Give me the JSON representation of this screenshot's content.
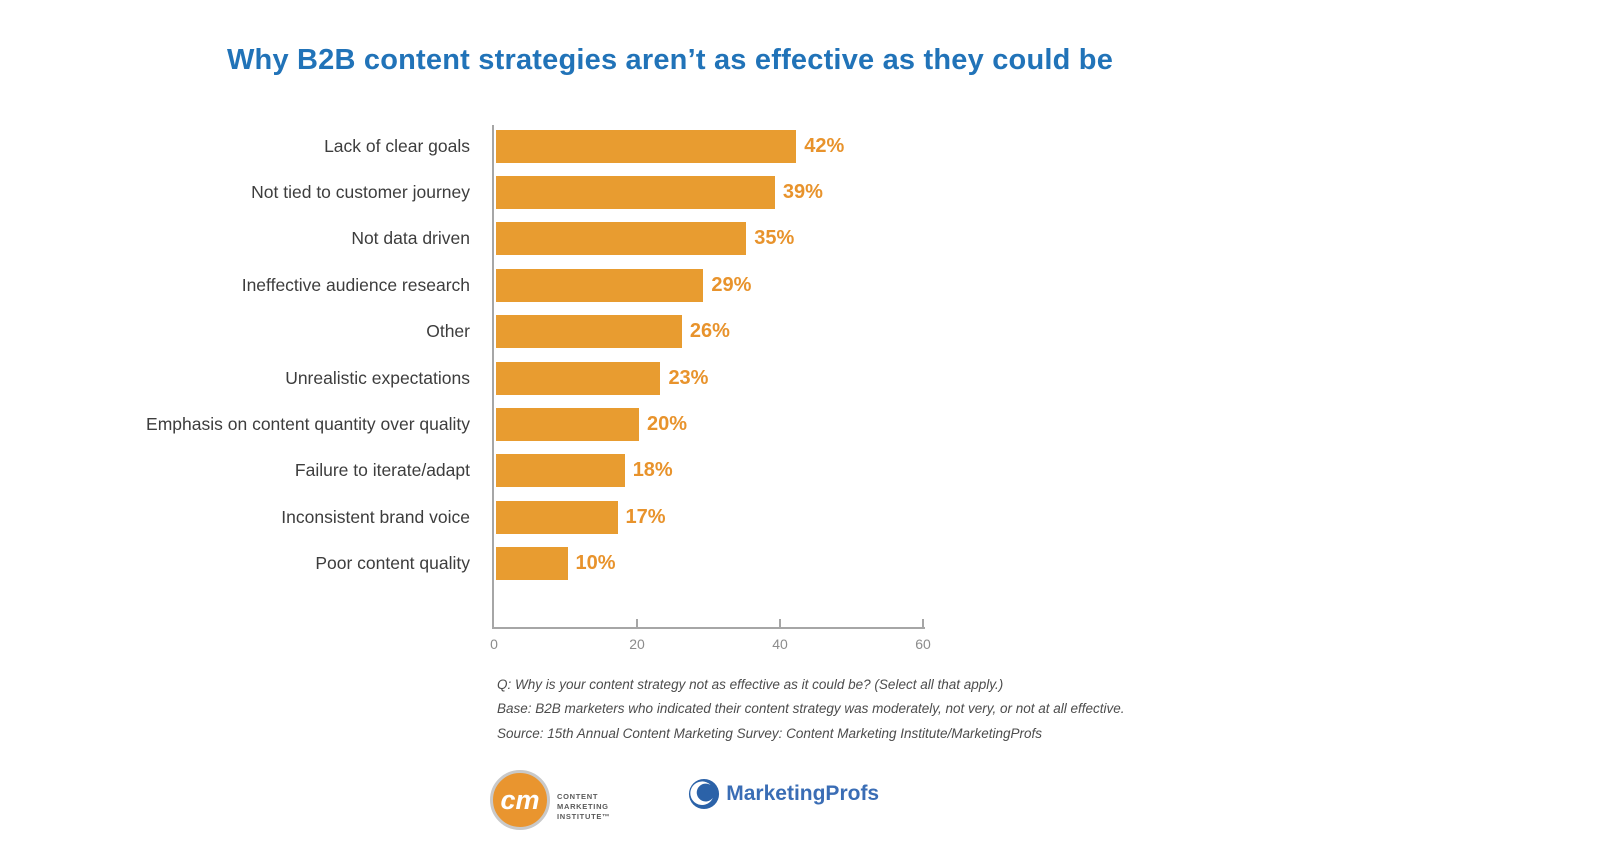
{
  "title": {
    "text": "Why B2B content strategies aren’t as effective as they could be"
  },
  "chart_data": {
    "type": "bar",
    "orientation": "horizontal",
    "title": "Why B2B content strategies aren’t as effective as they could be",
    "categories": [
      "Lack of clear goals",
      "Not tied to customer journey",
      "Not data driven",
      "Ineffective audience research",
      "Other",
      "Unrealistic expectations",
      "Emphasis on content quantity over quality",
      "Failure to iterate/adapt",
      "Inconsistent brand voice",
      "Poor content quality"
    ],
    "values": [
      42,
      39,
      35,
      29,
      26,
      23,
      20,
      18,
      17,
      10
    ],
    "value_labels": [
      "42%",
      "39%",
      "35%",
      "29%",
      "26%",
      "23%",
      "20%",
      "18%",
      "17%",
      "10%"
    ],
    "xlabel": "",
    "ylabel": "",
    "xlim": [
      0,
      60
    ],
    "x_ticks": [
      0,
      20,
      40,
      60
    ],
    "grid": false,
    "legend": false
  },
  "footnotes": {
    "line1": "Q: Why is your content strategy not as effective as it could be? (Select all that apply.)",
    "line2": "Base: B2B marketers who indicated their content strategy was moderately, not very, or not at all effective.",
    "line3": "Source: 15th Annual Content Marketing Survey: Content Marketing Institute/MarketingProfs"
  },
  "logos": {
    "cmi": {
      "monogram": "cm",
      "line1": "CONTENT",
      "line2": "MARKETING",
      "line3": "INSTITUTE™"
    },
    "marketingprofs": {
      "text": "MarketingProfs"
    }
  },
  "colors": {
    "background": "#ffffff",
    "title": "#2173b8",
    "bar": "#e89c30",
    "value_label": "#e8932c",
    "category_label": "#3d3d3d",
    "axis": "#a6a6a6",
    "tick_label": "#8c8c8c",
    "footnote": "#4c4c4c",
    "cmi_orange": "#e9952f",
    "cmi_text": "#5a5a5a",
    "mp_blue": "#3a6db5",
    "mp_blue_dark": "#2b62a8"
  }
}
